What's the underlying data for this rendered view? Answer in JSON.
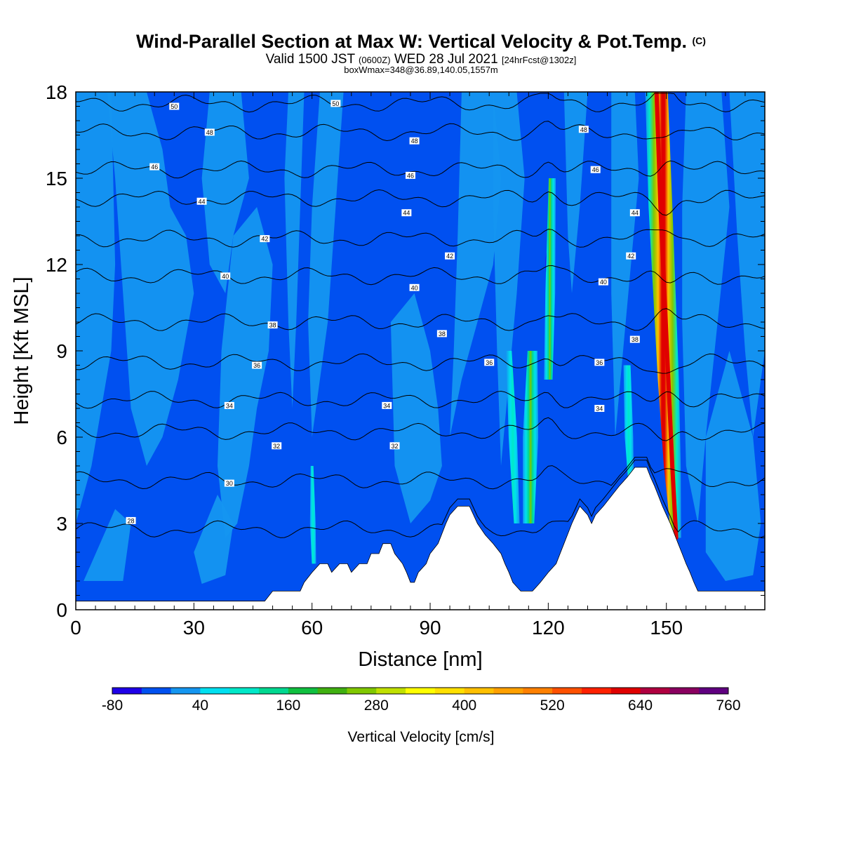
{
  "header": {
    "title": "Wind-Parallel Section at Max W: Vertical Velocity & Pot.Temp.",
    "title_mark": "(C)",
    "valid_a": "Valid 1500 JST",
    "valid_b": "(0600Z)",
    "valid_c": "WED 28 Jul 2021",
    "valid_d": "[24hrFcst@1302z]",
    "subtitle": "boxWmax=348@36.89,140.05,1557m"
  },
  "chart_data": {
    "type": "heatmap",
    "title": "Wind-Parallel Section at Max W: Vertical Velocity & Pot.Temp.",
    "xlabel": "Distance [nm]",
    "ylabel": "Height [Kft MSL]",
    "xlim": [
      0,
      175
    ],
    "ylim": [
      0,
      18
    ],
    "x_ticks": [
      0,
      30,
      60,
      90,
      120,
      150
    ],
    "y_ticks": [
      0,
      3,
      6,
      9,
      12,
      15,
      18
    ],
    "colorbar": {
      "title": "Vertical Velocity [cm/s]",
      "levels": [
        -80,
        -40,
        0,
        40,
        80,
        120,
        160,
        200,
        240,
        280,
        320,
        360,
        400,
        440,
        480,
        520,
        560,
        600,
        640,
        680,
        720,
        760
      ],
      "labeled": [
        -80,
        40,
        160,
        280,
        400,
        520,
        640,
        760
      ],
      "colors": [
        "#1e00e8",
        "#0050f0",
        "#1496f0",
        "#00e0f0",
        "#00e8c8",
        "#00d890",
        "#10c040",
        "#40b010",
        "#80c800",
        "#c0e000",
        "#ffff00",
        "#ffe000",
        "#ffc000",
        "#ffa000",
        "#ff8000",
        "#ff5000",
        "#ff2000",
        "#e00000",
        "#b00040",
        "#8a0060",
        "#600080"
      ]
    },
    "terrain_kft": [
      [
        0,
        0.3
      ],
      [
        48,
        0.3
      ],
      [
        50,
        0.65
      ],
      [
        57,
        0.65
      ],
      [
        58,
        0.95
      ],
      [
        60,
        1.3
      ],
      [
        62,
        1.6
      ],
      [
        64,
        1.6
      ],
      [
        65,
        1.3
      ],
      [
        67,
        1.6
      ],
      [
        69,
        1.6
      ],
      [
        70,
        1.3
      ],
      [
        72,
        1.6
      ],
      [
        74,
        1.6
      ],
      [
        75,
        1.95
      ],
      [
        77,
        1.95
      ],
      [
        78,
        2.3
      ],
      [
        80,
        2.3
      ],
      [
        81,
        1.95
      ],
      [
        83,
        1.6
      ],
      [
        84,
        1.3
      ],
      [
        85,
        0.95
      ],
      [
        86,
        0.95
      ],
      [
        87,
        1.3
      ],
      [
        89,
        1.6
      ],
      [
        90,
        1.95
      ],
      [
        92,
        2.3
      ],
      [
        93,
        2.65
      ],
      [
        94,
        3.0
      ],
      [
        95,
        3.3
      ],
      [
        97,
        3.6
      ],
      [
        100,
        3.6
      ],
      [
        101,
        3.3
      ],
      [
        102,
        3.0
      ],
      [
        104,
        2.6
      ],
      [
        106,
        2.3
      ],
      [
        108,
        1.95
      ],
      [
        109,
        1.6
      ],
      [
        110,
        1.3
      ],
      [
        111,
        0.95
      ],
      [
        113,
        0.65
      ],
      [
        116,
        0.65
      ],
      [
        118,
        0.95
      ],
      [
        120,
        1.3
      ],
      [
        122,
        1.6
      ],
      [
        123,
        1.95
      ],
      [
        124,
        2.3
      ],
      [
        125,
        2.65
      ],
      [
        126,
        3.0
      ],
      [
        128,
        3.6
      ],
      [
        130,
        3.3
      ],
      [
        131,
        3.0
      ],
      [
        132,
        3.3
      ],
      [
        134,
        3.6
      ],
      [
        136,
        3.95
      ],
      [
        138,
        4.3
      ],
      [
        140,
        4.6
      ],
      [
        142,
        4.95
      ],
      [
        145,
        4.95
      ],
      [
        146,
        4.6
      ],
      [
        147,
        4.3
      ],
      [
        148,
        3.95
      ],
      [
        149,
        3.6
      ],
      [
        150,
        3.3
      ],
      [
        151,
        3.0
      ],
      [
        152,
        2.65
      ],
      [
        153,
        2.3
      ],
      [
        154,
        1.95
      ],
      [
        155,
        1.6
      ],
      [
        156,
        1.3
      ],
      [
        157,
        0.95
      ],
      [
        158,
        0.65
      ],
      [
        175,
        0.65
      ]
    ],
    "theta_contours": [
      {
        "value": 28,
        "y_kft": 2.8
      },
      {
        "value": 30,
        "y_kft": 4.5
      },
      {
        "value": 32,
        "y_kft": 6.2
      },
      {
        "value": 34,
        "y_kft": 7.3
      },
      {
        "value": 36,
        "y_kft": 8.6
      },
      {
        "value": 38,
        "y_kft": 10.0
      },
      {
        "value": 40,
        "y_kft": 11.6
      },
      {
        "value": 42,
        "y_kft": 12.9
      },
      {
        "value": 44,
        "y_kft": 14.3
      },
      {
        "value": 46,
        "y_kft": 15.3
      },
      {
        "value": 48,
        "y_kft": 16.6
      },
      {
        "value": 50,
        "y_kft": 17.6
      }
    ],
    "contour_labels": [
      {
        "text": "50",
        "x": 25,
        "y": 17.5
      },
      {
        "text": "50",
        "x": 66,
        "y": 17.6
      },
      {
        "text": "48",
        "x": 34,
        "y": 16.6
      },
      {
        "text": "48",
        "x": 86,
        "y": 16.3
      },
      {
        "text": "48",
        "x": 129,
        "y": 16.7
      },
      {
        "text": "46",
        "x": 20,
        "y": 15.4
      },
      {
        "text": "46",
        "x": 85,
        "y": 15.1
      },
      {
        "text": "46",
        "x": 132,
        "y": 15.3
      },
      {
        "text": "44",
        "x": 32,
        "y": 14.2
      },
      {
        "text": "44",
        "x": 84,
        "y": 13.8
      },
      {
        "text": "44",
        "x": 142,
        "y": 13.8
      },
      {
        "text": "42",
        "x": 48,
        "y": 12.9
      },
      {
        "text": "42",
        "x": 95,
        "y": 12.3
      },
      {
        "text": "42",
        "x": 141,
        "y": 12.3
      },
      {
        "text": "40",
        "x": 38,
        "y": 11.6
      },
      {
        "text": "40",
        "x": 86,
        "y": 11.2
      },
      {
        "text": "40",
        "x": 134,
        "y": 11.4
      },
      {
        "text": "38",
        "x": 50,
        "y": 9.9
      },
      {
        "text": "38",
        "x": 93,
        "y": 9.6
      },
      {
        "text": "38",
        "x": 142,
        "y": 9.4
      },
      {
        "text": "36",
        "x": 46,
        "y": 8.5
      },
      {
        "text": "36",
        "x": 105,
        "y": 8.6
      },
      {
        "text": "36",
        "x": 133,
        "y": 8.6
      },
      {
        "text": "34",
        "x": 39,
        "y": 7.1
      },
      {
        "text": "34",
        "x": 79,
        "y": 7.1
      },
      {
        "text": "34",
        "x": 133,
        "y": 7.0
      },
      {
        "text": "32",
        "x": 51,
        "y": 5.7
      },
      {
        "text": "32",
        "x": 81,
        "y": 5.7
      },
      {
        "text": "30",
        "x": 39,
        "y": 4.4
      },
      {
        "text": "28",
        "x": 14,
        "y": 3.1
      }
    ],
    "updraft_cores": [
      {
        "x_kft_path": [
          [
            147.5,
            18
          ],
          [
            148.5,
            14
          ],
          [
            149.5,
            11
          ],
          [
            150.5,
            8
          ],
          [
            151.5,
            5
          ],
          [
            152.5,
            2.5
          ]
        ],
        "peak_cm_s": 620
      },
      {
        "x_kft_path": [
          [
            121,
            15
          ],
          [
            120.5,
            11
          ],
          [
            120,
            8
          ]
        ],
        "peak_cm_s": 260
      },
      {
        "x_kft_path": [
          [
            116,
            9
          ],
          [
            115.5,
            6
          ],
          [
            115,
            3
          ]
        ],
        "peak_cm_s": 240
      }
    ]
  }
}
